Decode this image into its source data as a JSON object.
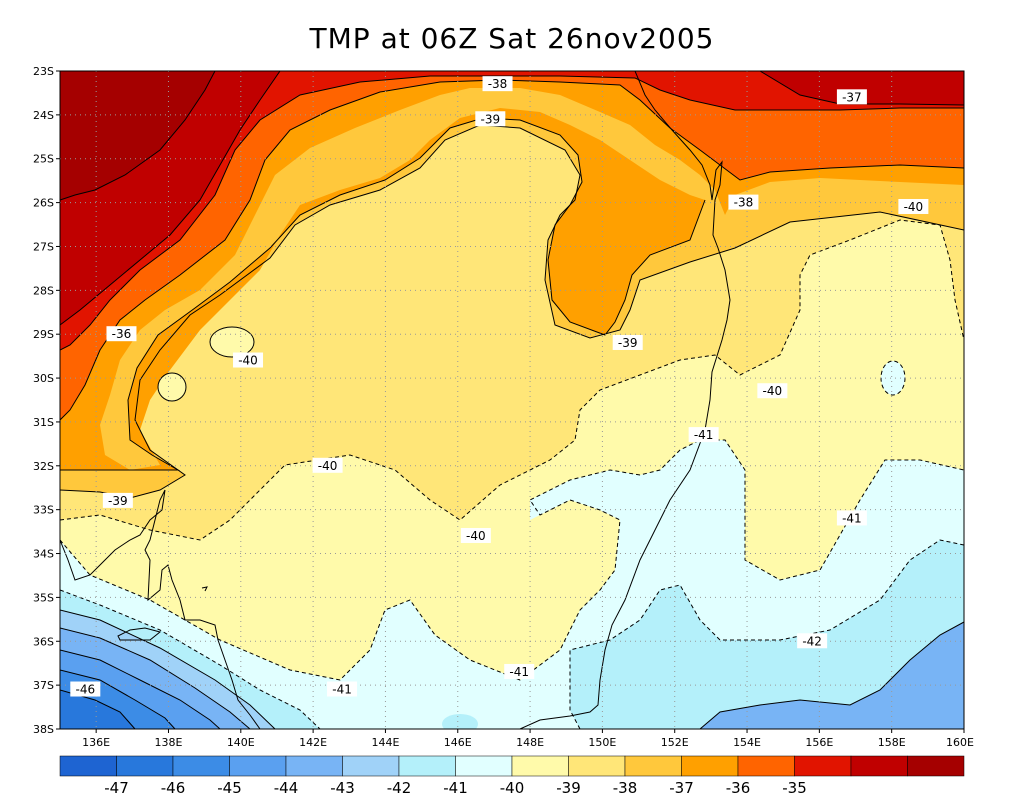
{
  "title": "TMP at 06Z Sat 26nov2005",
  "chart_data": {
    "type": "map",
    "variable": "TMP",
    "lat_ticks": [
      "23S",
      "24S",
      "25S",
      "26S",
      "27S",
      "28S",
      "29S",
      "30S",
      "31S",
      "32S",
      "33S",
      "34S",
      "35S",
      "36S",
      "37S",
      "38S"
    ],
    "lon_ticks": [
      "136E",
      "138E",
      "140E",
      "142E",
      "144E",
      "146E",
      "148E",
      "150E",
      "152E",
      "154E",
      "156E",
      "158E",
      "160E"
    ],
    "lon_range": [
      135,
      160
    ],
    "lat_range": [
      -23,
      -38
    ],
    "grid": true,
    "colorbar": {
      "colors": [
        "#1e64d2",
        "#2878dc",
        "#3c8ce6",
        "#5aa0f0",
        "#78b4f5",
        "#a0d2f8",
        "#b4f0fa",
        "#e1ffff",
        "#fffaaa",
        "#ffe678",
        "#ffc83c",
        "#ffa000",
        "#ff6400",
        "#e11400",
        "#c00000",
        "#a50000"
      ],
      "labels": [
        "-47",
        "-46",
        "-45",
        "-44",
        "-43",
        "-42",
        "-41",
        "-40",
        "-39",
        "-38",
        "-37",
        "-36",
        "-35"
      ]
    },
    "contour_labels": [
      {
        "text": "-38",
        "lon": 147.1,
        "lat": -23.3
      },
      {
        "text": "-37",
        "lon": 156.9,
        "lat": -23.6
      },
      {
        "text": "-39",
        "lon": 146.9,
        "lat": -24.1
      },
      {
        "text": "-38",
        "lon": 153.9,
        "lat": -26.0
      },
      {
        "text": "-40",
        "lon": 158.6,
        "lat": -26.1
      },
      {
        "text": "-36",
        "lon": 136.7,
        "lat": -29.0
      },
      {
        "text": "-39",
        "lon": 150.7,
        "lat": -29.2
      },
      {
        "text": "-40",
        "lon": 140.2,
        "lat": -29.6
      },
      {
        "text": "-40",
        "lon": 154.7,
        "lat": -30.3
      },
      {
        "text": "-41",
        "lon": 152.8,
        "lat": -31.3
      },
      {
        "text": "-40",
        "lon": 142.4,
        "lat": -32.0
      },
      {
        "text": "-39",
        "lon": 136.6,
        "lat": -32.8
      },
      {
        "text": "-41",
        "lon": 156.9,
        "lat": -33.2
      },
      {
        "text": "-40",
        "lon": 146.5,
        "lat": -33.6
      },
      {
        "text": "-42",
        "lon": 155.8,
        "lat": -36.0
      },
      {
        "text": "-41",
        "lon": 147.7,
        "lat": -36.7
      },
      {
        "text": "-46",
        "lon": 135.7,
        "lat": -37.1
      },
      {
        "text": "-41",
        "lon": 142.8,
        "lat": -37.1
      }
    ]
  }
}
